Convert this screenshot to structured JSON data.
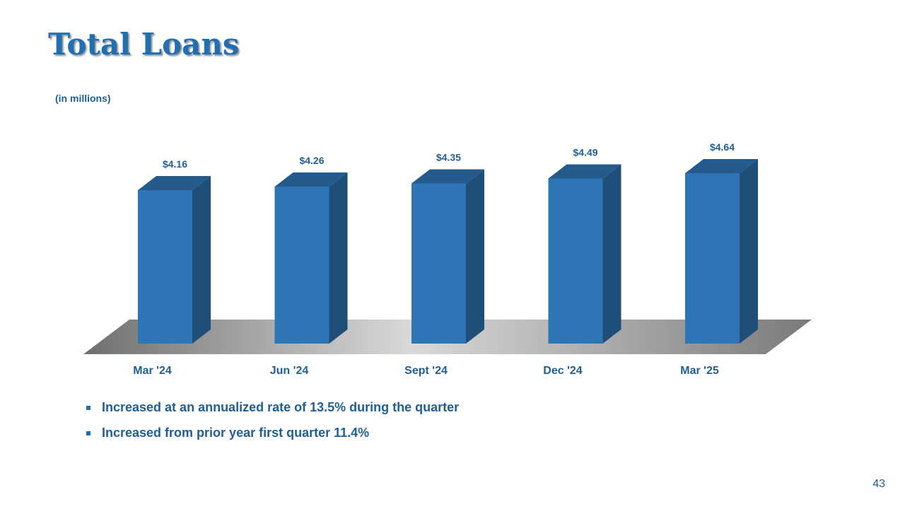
{
  "slide": {
    "title": "Total Loans",
    "subtitle": "(in millions)",
    "page_number": "43"
  },
  "bullets": [
    "Increased at an annualized rate of 13.5% during the quarter",
    "Increased from prior year first quarter 11.4%"
  ],
  "colors": {
    "title": "#1f6fb2",
    "text": "#1f5f96",
    "bar_front": "#2e75b6",
    "bar_side": "#1f4e79",
    "bar_top": "#245a8c"
  },
  "chart_data": {
    "type": "bar",
    "style": "3d",
    "categories": [
      "Mar '24",
      "Jun '24",
      "Sept '24",
      "Dec '24",
      "Mar '25"
    ],
    "values": [
      4.16,
      4.26,
      4.35,
      4.49,
      4.64
    ],
    "data_labels": [
      "$4.16",
      "$4.26",
      "$4.35",
      "$4.49",
      "$4.64"
    ],
    "title": "",
    "xlabel": "",
    "ylabel": "",
    "grid": false,
    "legend": "none"
  }
}
